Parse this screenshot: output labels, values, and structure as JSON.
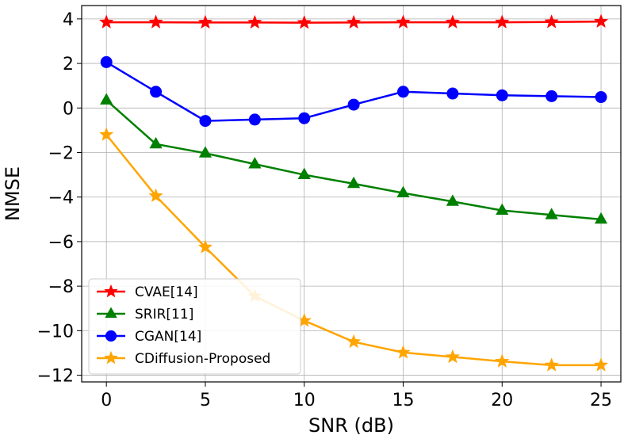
{
  "chart_data": {
    "type": "line",
    "xlabel": "SNR (dB)",
    "ylabel": "NMSE",
    "xlim": [
      -1.25,
      26.0
    ],
    "ylim": [
      -12.3,
      4.6
    ],
    "xticks": [
      0,
      5,
      10,
      15,
      20,
      25
    ],
    "yticks": [
      4,
      2,
      0,
      -2,
      -4,
      -6,
      -8,
      -10,
      -12
    ],
    "xtick_labels": [
      "0",
      "5",
      "10",
      "15",
      "20",
      "25"
    ],
    "ytick_labels": [
      "4",
      "2",
      "0",
      "−2",
      "−4",
      "−6",
      "−8",
      "−10",
      "−12"
    ],
    "grid": true,
    "legend_position": "lower-left",
    "x": [
      0,
      2.5,
      5,
      7.5,
      10,
      12.5,
      15,
      17.5,
      20,
      22.5,
      25
    ],
    "series": [
      {
        "name": "CVAE[14]",
        "color": "#ff0000",
        "marker": "star",
        "values": [
          3.85,
          3.85,
          3.84,
          3.84,
          3.83,
          3.84,
          3.85,
          3.85,
          3.85,
          3.86,
          3.88
        ]
      },
      {
        "name": "SRIR[11]",
        "color": "#008000",
        "marker": "triangle",
        "values": [
          0.35,
          -1.62,
          -2.03,
          -2.52,
          -3.0,
          -3.4,
          -3.82,
          -4.2,
          -4.6,
          -4.8,
          -5.0
        ]
      },
      {
        "name": "CGAN[14]",
        "color": "#0000ff",
        "marker": "circle",
        "values": [
          2.06,
          0.73,
          -0.58,
          -0.52,
          -0.46,
          0.15,
          0.73,
          0.65,
          0.57,
          0.53,
          0.49
        ]
      },
      {
        "name": "CDiffusion-Proposed",
        "color": "#ffa500",
        "marker": "star",
        "values": [
          -1.2,
          -3.95,
          -6.25,
          -8.45,
          -9.55,
          -10.5,
          -10.98,
          -11.18,
          -11.38,
          -11.55,
          -11.55
        ]
      }
    ]
  }
}
